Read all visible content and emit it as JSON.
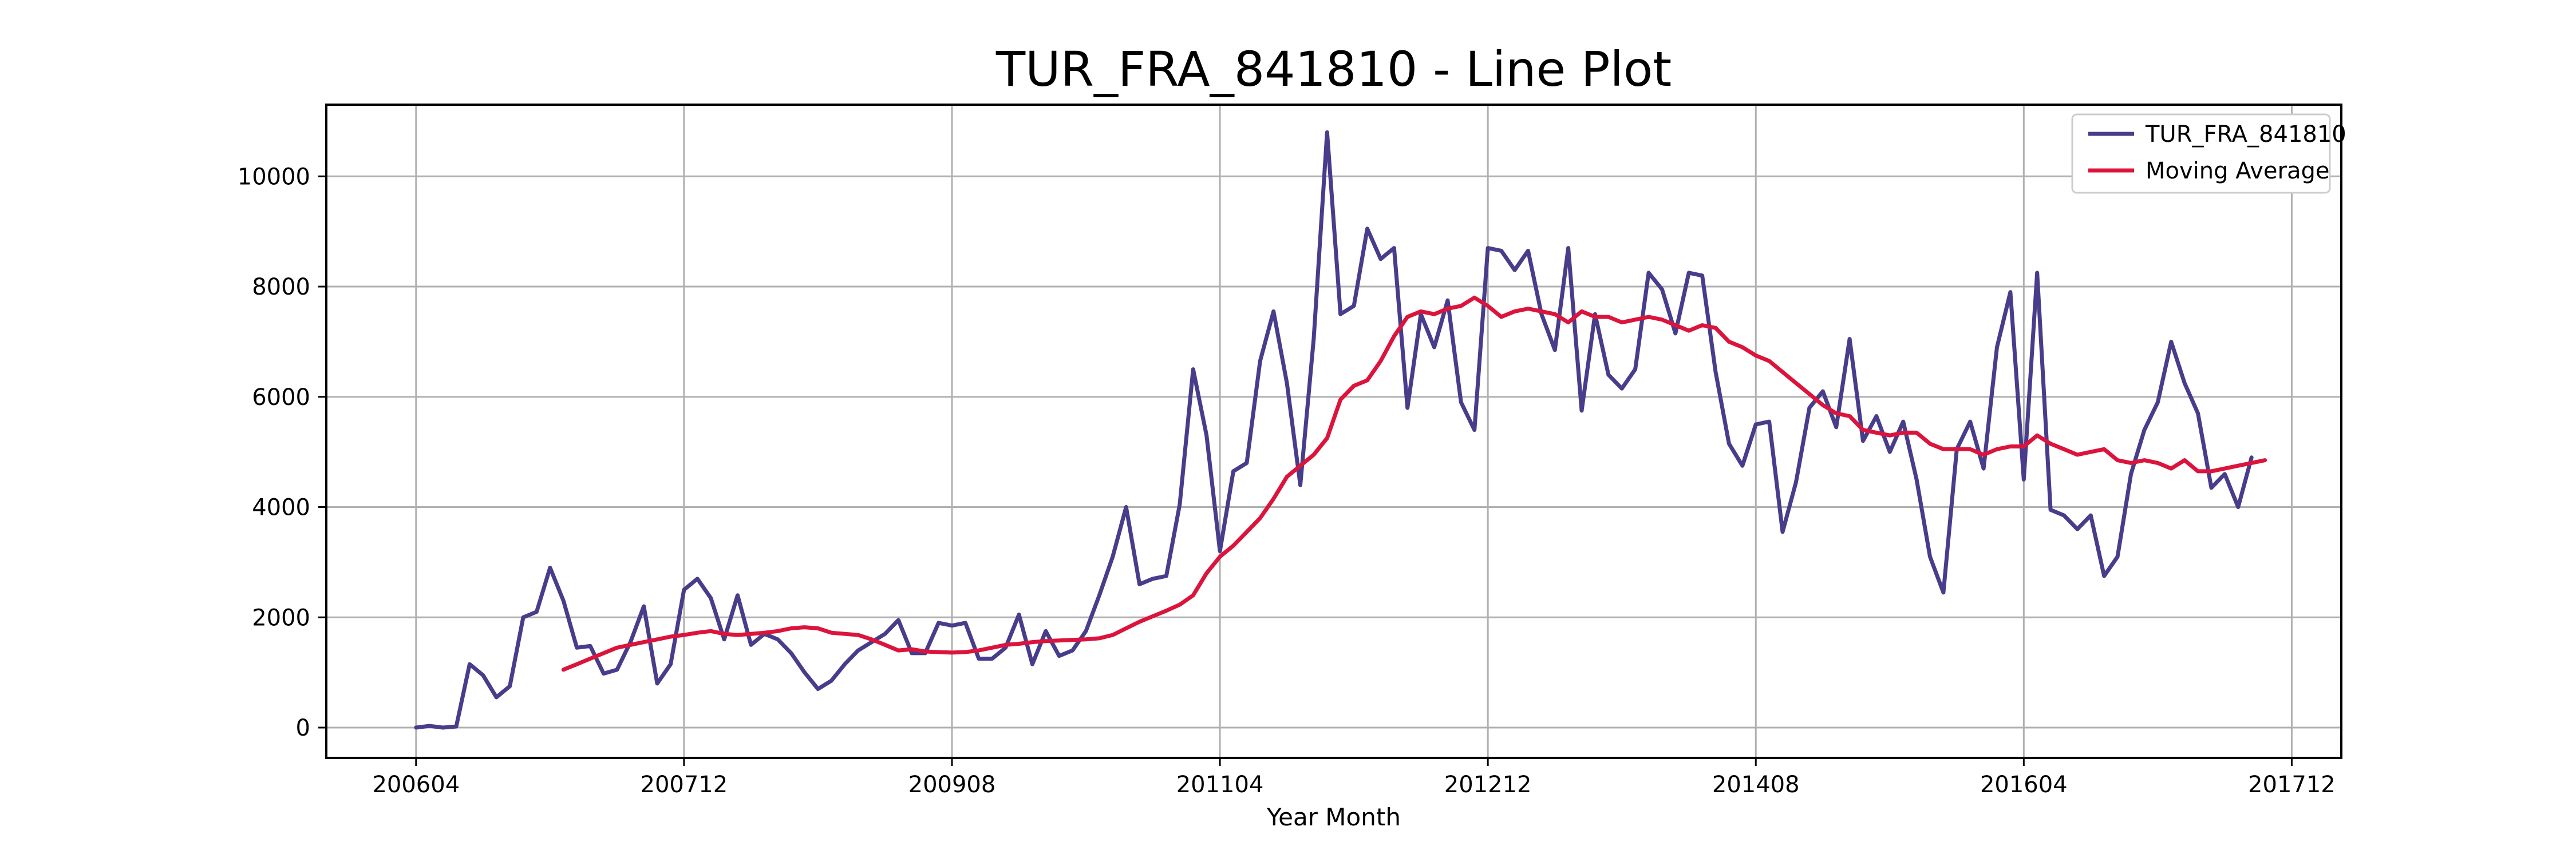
{
  "chart_data": {
    "type": "line",
    "title": "TUR_FRA_841810 - Line Plot",
    "xlabel": "Year Month",
    "ylabel": "",
    "xlim": [
      200510,
      201801
    ],
    "ylim": [
      -550,
      11300
    ],
    "grid": true,
    "legend": "top-right",
    "x_ticks": [
      {
        "pos": 0,
        "label": "200604"
      },
      {
        "pos": 20,
        "label": "200712"
      },
      {
        "pos": 40,
        "label": "200908"
      },
      {
        "pos": 60,
        "label": "201104"
      },
      {
        "pos": 80,
        "label": "201212"
      },
      {
        "pos": 100,
        "label": "201408"
      },
      {
        "pos": 120,
        "label": "201604"
      },
      {
        "pos": 140,
        "label": "201712"
      }
    ],
    "y_ticks": [
      0,
      2000,
      4000,
      6000,
      8000,
      10000
    ],
    "x_range_index": [
      -6.7,
      143.7
    ],
    "series": [
      {
        "name": "TUR_FRA_841810",
        "color": "#483d8b",
        "start_index": 0,
        "values": [
          0,
          30,
          0,
          20,
          1150,
          950,
          550,
          750,
          2000,
          2100,
          2900,
          2300,
          1450,
          1480,
          980,
          1050,
          1550,
          2200,
          800,
          1150,
          2500,
          2700,
          2350,
          1600,
          2400,
          1500,
          1700,
          1600,
          1350,
          1000,
          700,
          850,
          1150,
          1400,
          1550,
          1700,
          1950,
          1350,
          1350,
          1900,
          1850,
          1900,
          1250,
          1250,
          1450,
          2050,
          1150,
          1750,
          1300,
          1400,
          1750,
          2400,
          3100,
          4000,
          2600,
          2700,
          2750,
          4050,
          6500,
          5300,
          3200,
          4650,
          4800,
          6650,
          7550,
          6250,
          4400,
          7050,
          10800,
          7500,
          7650,
          9050,
          8500,
          8700,
          5800,
          7500,
          6900,
          7750,
          5900,
          5400,
          8700,
          8650,
          8300,
          8650,
          7500,
          6850,
          8700,
          5750,
          7500,
          6400,
          6150,
          6500,
          8250,
          7950,
          7150,
          8250,
          8200,
          6450,
          5150,
          4750,
          5500,
          5550,
          3550,
          4450,
          5800,
          6100,
          5450,
          7050,
          5200,
          5650,
          5000,
          5550,
          4500,
          3100,
          2450,
          5050,
          5550,
          4700,
          6900,
          7900,
          4500,
          8250,
          3950,
          3850,
          3600,
          3850,
          2750,
          3100,
          4600,
          5400,
          5900,
          7000,
          6250,
          5700,
          4350,
          4600,
          4000,
          4900
        ]
      },
      {
        "name": "Moving Average",
        "color": "#dc143c",
        "start_index": 11,
        "values": [
          1050,
          1150,
          1250,
          1350,
          1450,
          1500,
          1550,
          1600,
          1650,
          1680,
          1720,
          1750,
          1700,
          1680,
          1700,
          1720,
          1750,
          1800,
          1820,
          1800,
          1720,
          1700,
          1680,
          1600,
          1500,
          1400,
          1420,
          1380,
          1370,
          1360,
          1370,
          1400,
          1450,
          1500,
          1520,
          1550,
          1570,
          1580,
          1590,
          1600,
          1620,
          1680,
          1800,
          1920,
          2020,
          2120,
          2230,
          2400,
          2800,
          3100,
          3300,
          3550,
          3800,
          4150,
          4550,
          4750,
          4950,
          5250,
          5950,
          6200,
          6300,
          6650,
          7100,
          7450,
          7550,
          7500,
          7600,
          7650,
          7800,
          7650,
          7450,
          7550,
          7600,
          7550,
          7500,
          7350,
          7550,
          7450,
          7450,
          7350,
          7400,
          7450,
          7400,
          7300,
          7200,
          7300,
          7250,
          7000,
          6900,
          6750,
          6650,
          6450,
          6250,
          6050,
          5850,
          5700,
          5650,
          5400,
          5350,
          5300,
          5350,
          5350,
          5150,
          5050,
          5050,
          5050,
          4950,
          5050,
          5100,
          5100,
          5300,
          5150,
          5050,
          4950,
          5000,
          5050,
          4850,
          4800,
          4850,
          4800,
          4700,
          4850,
          4650,
          4650,
          4700,
          4750,
          4800,
          4850
        ]
      }
    ]
  }
}
